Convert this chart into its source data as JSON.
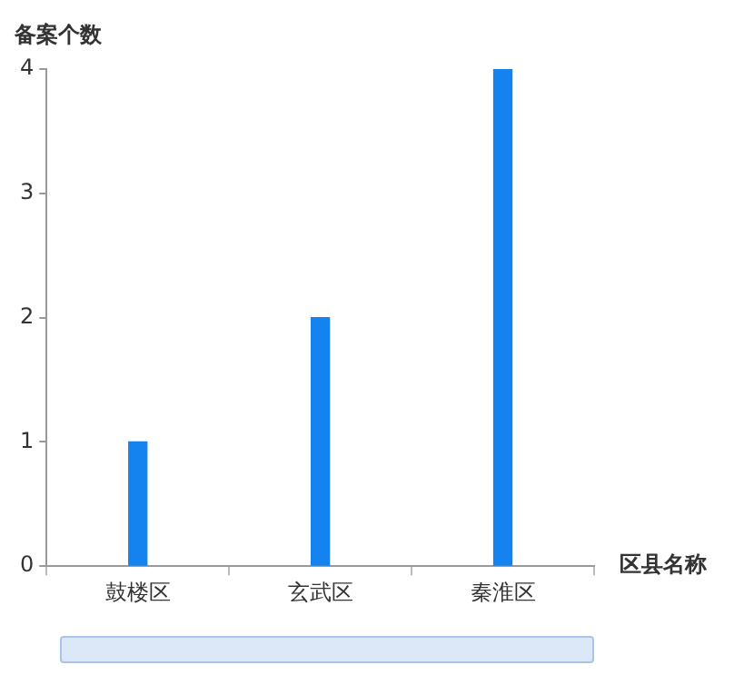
{
  "chart_data": {
    "type": "bar",
    "xlabel": "区县名称",
    "ylabel": "备案个数",
    "categories": [
      "鼓楼区",
      "玄武区",
      "秦淮区"
    ],
    "values": [
      1,
      2,
      4
    ],
    "color": "#1483f0",
    "ylim": [
      0,
      4
    ],
    "yticks": [
      0,
      1,
      2,
      3,
      4
    ],
    "grid": false
  }
}
